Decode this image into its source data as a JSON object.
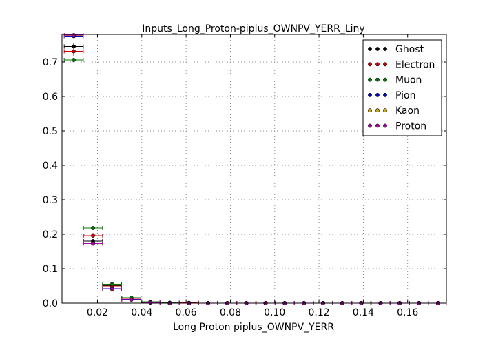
{
  "chart_data": {
    "type": "scatter",
    "title": "Inputs_Long_Proton-piplus_OWNPV_YERR_Liny",
    "xlabel": "Long Proton piplus_OWNPV_YERR",
    "ylabel": "",
    "xlim": [
      0.004,
      0.1775
    ],
    "ylim": [
      0.0,
      0.78
    ],
    "xticks": [
      "0.02",
      "0.04",
      "0.06",
      "0.08",
      "0.10",
      "0.12",
      "0.14",
      "0.16"
    ],
    "xtick_values": [
      0.02,
      0.04,
      0.06,
      0.08,
      0.1,
      0.12,
      0.14,
      0.16
    ],
    "yticks": [
      "0.0",
      "0.1",
      "0.2",
      "0.3",
      "0.4",
      "0.5",
      "0.6",
      "0.7"
    ],
    "ytick_values": [
      0.0,
      0.1,
      0.2,
      0.3,
      0.4,
      0.5,
      0.6,
      0.7
    ],
    "grid": true,
    "legend_position": "top-right",
    "bin_half_width": 0.0043,
    "x": [
      0.0093,
      0.018,
      0.0266,
      0.0353,
      0.0439,
      0.0526,
      0.0613,
      0.0699,
      0.0786,
      0.0872,
      0.0959,
      0.1045,
      0.1132,
      0.1218,
      0.1305,
      0.1391,
      0.1478,
      0.1564,
      0.1651,
      0.1737
    ],
    "series": [
      {
        "name": "Ghost",
        "color": "#000000",
        "values": [
          0.745,
          0.18,
          0.052,
          0.015,
          0.003,
          0.001,
          0.0,
          0.0,
          0.0,
          0.0,
          0.0,
          0.0,
          0.0,
          0.0,
          0.0,
          0.0,
          0.0,
          0.0,
          0.0,
          0.0
        ],
        "errors": [
          0.01,
          0.006,
          0.003,
          0.002,
          0.001,
          0,
          0,
          0,
          0,
          0,
          0,
          0,
          0,
          0,
          0,
          0,
          0,
          0,
          0,
          0
        ]
      },
      {
        "name": "Electron",
        "color": "#cc0000",
        "values": [
          0.731,
          0.196,
          0.05,
          0.012,
          0.003,
          0.001,
          0.001,
          0.0,
          0.0,
          0.0,
          0.0,
          0.0,
          0.0,
          0.0,
          0.0,
          0.0,
          0.0,
          0.0,
          0.0,
          0.0
        ],
        "errors": [
          0.014,
          0.008,
          0.004,
          0.002,
          0.001,
          0,
          0,
          0,
          0,
          0,
          0,
          0,
          0,
          0,
          0,
          0,
          0,
          0,
          0,
          0
        ]
      },
      {
        "name": "Muon",
        "color": "#007700",
        "values": [
          0.706,
          0.218,
          0.055,
          0.016,
          0.004,
          0.001,
          0.0,
          0.0,
          0.0,
          0.0,
          0.0,
          0.0,
          0.0,
          0.0,
          0.0,
          0.0,
          0.0,
          0.0,
          0.0,
          0.0
        ],
        "errors": [
          0.006,
          0.004,
          0.002,
          0.001,
          0.001,
          0,
          0,
          0,
          0,
          0,
          0,
          0,
          0,
          0,
          0,
          0,
          0,
          0,
          0,
          0
        ]
      },
      {
        "name": "Pion",
        "color": "#0000cc",
        "values": [
          0.775,
          0.175,
          0.042,
          0.011,
          0.002,
          0.0,
          0.0,
          0.0,
          0.0,
          0.0,
          0.0,
          0.0,
          0.0,
          0.0,
          0.0,
          0.0,
          0.0,
          0.0,
          0.0,
          0.0
        ],
        "errors": [
          0.005,
          0.003,
          0.002,
          0.001,
          0,
          0,
          0,
          0,
          0,
          0,
          0,
          0,
          0,
          0,
          0,
          0,
          0,
          0,
          0,
          0
        ]
      },
      {
        "name": "Kaon",
        "color": "#ccaa00",
        "values": [
          0.777,
          0.174,
          0.041,
          0.01,
          0.002,
          0.0,
          0.0,
          0.0,
          0.0,
          0.0,
          0.0,
          0.0,
          0.0,
          0.0,
          0.0,
          0.0,
          0.0,
          0.0,
          0.0,
          0.0
        ],
        "errors": [
          0.005,
          0.003,
          0.002,
          0.001,
          0,
          0,
          0,
          0,
          0,
          0,
          0,
          0,
          0,
          0,
          0,
          0,
          0,
          0,
          0,
          0
        ]
      },
      {
        "name": "Proton",
        "color": "#aa00aa",
        "values": [
          0.778,
          0.173,
          0.041,
          0.01,
          0.002,
          0.0,
          0.0,
          0.0,
          0.0,
          0.0,
          0.0,
          0.0,
          0.0,
          0.0,
          0.0,
          0.0,
          0.0,
          0.0,
          0.0,
          0.0
        ],
        "errors": [
          0.005,
          0.003,
          0.002,
          0.001,
          0,
          0,
          0,
          0,
          0,
          0,
          0,
          0,
          0,
          0,
          0,
          0,
          0,
          0,
          0,
          0
        ]
      }
    ]
  }
}
